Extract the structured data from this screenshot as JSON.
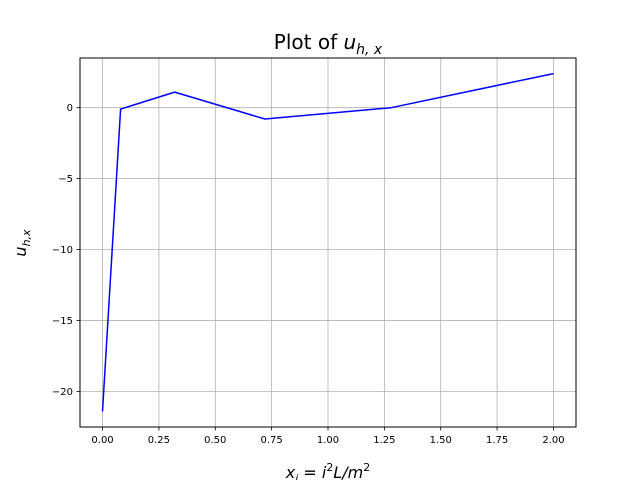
{
  "chart_data": {
    "type": "line",
    "title": {
      "prefix": "Plot of ",
      "var": "u",
      "sub": "h, x"
    },
    "xlabel": {
      "a": "x",
      "a_sub": "i",
      "b": " = i",
      "b_sup": "2",
      "c": "L/m",
      "c_sup": "2"
    },
    "ylabel": {
      "var": "u",
      "sub": "h,x"
    },
    "xlim": [
      -0.1,
      2.1
    ],
    "ylim": [
      -22.5,
      3.5
    ],
    "xticks": [
      0.0,
      0.25,
      0.5,
      0.75,
      1.0,
      1.25,
      1.5,
      1.75,
      2.0
    ],
    "xtick_labels": [
      "0.00",
      "0.25",
      "0.50",
      "0.75",
      "1.00",
      "1.25",
      "1.50",
      "1.75",
      "2.00"
    ],
    "yticks": [
      -20,
      -15,
      -10,
      -5,
      0
    ],
    "ytick_labels": [
      "−20",
      "−15",
      "−10",
      "−5",
      "0"
    ],
    "grid": true,
    "line_color": "#0000ff",
    "series": [
      {
        "x": [
          0.0,
          0.08,
          0.32,
          0.72,
          1.28,
          2.0
        ],
        "y": [
          -21.4,
          -0.1,
          1.1,
          -0.8,
          0.0,
          2.4
        ]
      }
    ]
  }
}
